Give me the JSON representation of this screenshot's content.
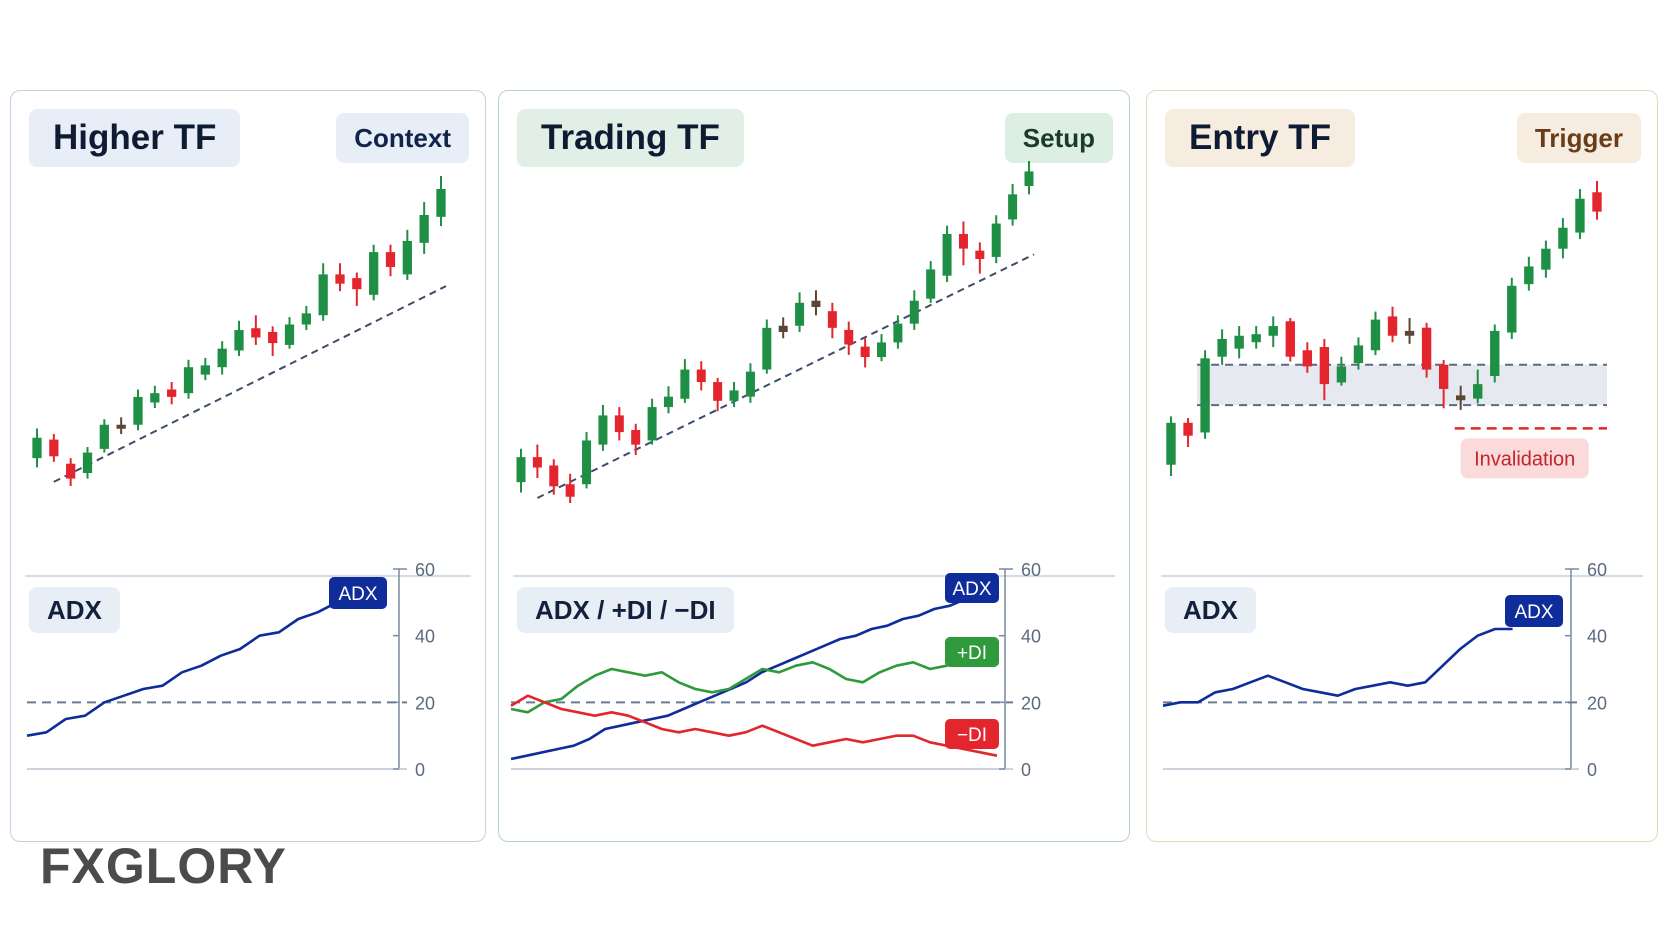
{
  "colors": {
    "bull": "#1e8f45",
    "bear": "#e3262d",
    "neutral": "#5b4636",
    "adx": "#0f2d9a",
    "plus_di": "#2e9a3c",
    "minus_di": "#e3262d",
    "trend_line": "#3d4c6b",
    "grid_ref": "#6a7b94",
    "axis": "#7b8aa0"
  },
  "logo": {
    "text": "FXGLORY"
  },
  "panels": [
    {
      "title": "Higher TF",
      "tag": "Context",
      "indicator_label": "ADX",
      "colors": {
        "title_bg": "#e7eef8",
        "tag_bg": "#e7eef8",
        "tag_fg": "#13244a"
      }
    },
    {
      "title": "Trading TF",
      "tag": "Setup",
      "indicator_label": "ADX / +DI / −DI",
      "colors": {
        "title_bg": "#e1efe6",
        "tag_bg": "#dcefe2",
        "tag_fg": "#1b3a27"
      }
    },
    {
      "title": "Entry TF",
      "tag": "Trigger",
      "indicator_label": "ADX",
      "invalidation_label": "Invalidation",
      "colors": {
        "title_bg": "#f6ece0",
        "tag_bg": "#f6ece0",
        "tag_fg": "#6a3d1a",
        "invalidation_bg": "#fadadb",
        "invalidation_fg": "#c0262a"
      }
    }
  ],
  "chart_data": [
    {
      "panel": "Higher TF",
      "type": "candlestick",
      "trend_line": true,
      "candles": [
        {
          "o": 4.1,
          "c": 5.2,
          "h": 5.7,
          "l": 3.6
        },
        {
          "o": 5.1,
          "c": 4.2,
          "h": 5.4,
          "l": 3.9
        },
        {
          "o": 3.8,
          "c": 3.0,
          "h": 4.1,
          "l": 2.6
        },
        {
          "o": 3.3,
          "c": 4.4,
          "h": 4.7,
          "l": 3.0
        },
        {
          "o": 4.6,
          "c": 5.9,
          "h": 6.2,
          "l": 4.4
        },
        {
          "o": 5.7,
          "c": 5.9,
          "h": 6.3,
          "l": 5.4
        },
        {
          "o": 5.9,
          "c": 7.4,
          "h": 7.8,
          "l": 5.6
        },
        {
          "o": 7.1,
          "c": 7.6,
          "h": 8.0,
          "l": 6.8
        },
        {
          "o": 7.8,
          "c": 7.4,
          "h": 8.2,
          "l": 7.0
        },
        {
          "o": 7.6,
          "c": 9.0,
          "h": 9.4,
          "l": 7.3
        },
        {
          "o": 8.6,
          "c": 9.1,
          "h": 9.5,
          "l": 8.3
        },
        {
          "o": 9.0,
          "c": 10.0,
          "h": 10.4,
          "l": 8.6
        },
        {
          "o": 9.9,
          "c": 11.0,
          "h": 11.5,
          "l": 9.6
        },
        {
          "o": 11.1,
          "c": 10.6,
          "h": 11.8,
          "l": 10.2
        },
        {
          "o": 10.9,
          "c": 10.3,
          "h": 11.2,
          "l": 9.6
        },
        {
          "o": 10.2,
          "c": 11.3,
          "h": 11.7,
          "l": 10.0
        },
        {
          "o": 11.3,
          "c": 11.9,
          "h": 12.3,
          "l": 11.0
        },
        {
          "o": 11.8,
          "c": 14.0,
          "h": 14.6,
          "l": 11.5
        },
        {
          "o": 14.0,
          "c": 13.5,
          "h": 14.6,
          "l": 13.1
        },
        {
          "o": 13.8,
          "c": 13.2,
          "h": 14.1,
          "l": 12.3
        },
        {
          "o": 12.9,
          "c": 15.2,
          "h": 15.6,
          "l": 12.6
        },
        {
          "o": 15.2,
          "c": 14.4,
          "h": 15.6,
          "l": 13.9
        },
        {
          "o": 14.0,
          "c": 15.8,
          "h": 16.4,
          "l": 13.7
        },
        {
          "o": 15.7,
          "c": 17.2,
          "h": 17.9,
          "l": 15.1
        },
        {
          "o": 17.1,
          "c": 18.6,
          "h": 19.3,
          "l": 16.6
        }
      ],
      "indicator": {
        "type": "line",
        "ylim": [
          0,
          60
        ],
        "y_ticks": [
          "0",
          "20",
          "40",
          "60"
        ],
        "reference": 20,
        "series": [
          {
            "name": "ADX",
            "color_key": "adx",
            "values": [
              10,
              11,
              15,
              16,
              20,
              22,
              24,
              25,
              29,
              31,
              34,
              36,
              40,
              41,
              45,
              47,
              50
            ]
          }
        ]
      }
    },
    {
      "panel": "Trading TF",
      "type": "candlestick",
      "trend_line": true,
      "candles": [
        {
          "o": 3.2,
          "c": 4.4,
          "h": 4.8,
          "l": 2.7
        },
        {
          "o": 4.4,
          "c": 3.9,
          "h": 5.0,
          "l": 3.4
        },
        {
          "o": 4.0,
          "c": 3.0,
          "h": 4.3,
          "l": 2.6
        },
        {
          "o": 3.1,
          "c": 2.5,
          "h": 3.6,
          "l": 2.2
        },
        {
          "o": 3.1,
          "c": 5.2,
          "h": 5.6,
          "l": 2.9
        },
        {
          "o": 5.0,
          "c": 6.4,
          "h": 6.9,
          "l": 4.7
        },
        {
          "o": 6.4,
          "c": 5.6,
          "h": 6.8,
          "l": 5.2
        },
        {
          "o": 5.7,
          "c": 5.0,
          "h": 6.0,
          "l": 4.5
        },
        {
          "o": 5.2,
          "c": 6.8,
          "h": 7.2,
          "l": 5.0
        },
        {
          "o": 6.8,
          "c": 7.3,
          "h": 7.8,
          "l": 6.5
        },
        {
          "o": 7.2,
          "c": 8.6,
          "h": 9.1,
          "l": 7.0
        },
        {
          "o": 8.6,
          "c": 8.0,
          "h": 9.0,
          "l": 7.6
        },
        {
          "o": 8.0,
          "c": 7.1,
          "h": 8.2,
          "l": 6.6
        },
        {
          "o": 7.1,
          "c": 7.6,
          "h": 8.0,
          "l": 6.8
        },
        {
          "o": 7.3,
          "c": 8.5,
          "h": 8.9,
          "l": 7.0
        },
        {
          "o": 8.6,
          "c": 10.6,
          "h": 11.0,
          "l": 8.4
        },
        {
          "o": 10.4,
          "c": 10.7,
          "h": 11.1,
          "l": 10.1
        },
        {
          "o": 10.7,
          "c": 11.8,
          "h": 12.3,
          "l": 10.4
        },
        {
          "o": 11.9,
          "c": 11.6,
          "h": 12.4,
          "l": 11.2
        },
        {
          "o": 11.4,
          "c": 10.6,
          "h": 11.8,
          "l": 10.1
        },
        {
          "o": 10.5,
          "c": 9.8,
          "h": 10.9,
          "l": 9.3
        },
        {
          "o": 9.7,
          "c": 9.2,
          "h": 10.1,
          "l": 8.7
        },
        {
          "o": 9.2,
          "c": 9.9,
          "h": 10.3,
          "l": 9.0
        },
        {
          "o": 9.9,
          "c": 10.8,
          "h": 11.2,
          "l": 9.6
        },
        {
          "o": 10.8,
          "c": 11.9,
          "h": 12.4,
          "l": 10.5
        },
        {
          "o": 12.0,
          "c": 13.4,
          "h": 13.8,
          "l": 11.8
        },
        {
          "o": 13.1,
          "c": 15.1,
          "h": 15.5,
          "l": 12.8
        },
        {
          "o": 15.1,
          "c": 14.4,
          "h": 15.7,
          "l": 13.6
        },
        {
          "o": 14.3,
          "c": 13.9,
          "h": 14.7,
          "l": 13.2
        },
        {
          "o": 14.0,
          "c": 15.6,
          "h": 16.0,
          "l": 13.7
        },
        {
          "o": 15.8,
          "c": 17.0,
          "h": 17.5,
          "l": 15.5
        },
        {
          "o": 17.4,
          "c": 18.1,
          "h": 18.6,
          "l": 17.0
        }
      ],
      "indicator": {
        "type": "line",
        "ylim": [
          0,
          60
        ],
        "y_ticks": [
          "0",
          "20",
          "40",
          "60"
        ],
        "reference": 20,
        "series": [
          {
            "name": "ADX",
            "color_key": "adx",
            "values": [
              3,
              4,
              5,
              6,
              7,
              9,
              12,
              13,
              14,
              15,
              16,
              18,
              20,
              22,
              24,
              26,
              29,
              31,
              33,
              35,
              37,
              39,
              40,
              42,
              43,
              45,
              46,
              48,
              49,
              51,
              52,
              52
            ]
          },
          {
            "name": "+DI",
            "color_key": "plus_di",
            "values": [
              18,
              17,
              20,
              21,
              25,
              28,
              30,
              29,
              28,
              29,
              26,
              24,
              23,
              24,
              27,
              30,
              29,
              31,
              32,
              30,
              27,
              26,
              29,
              31,
              32,
              30,
              31,
              33,
              33,
              32
            ]
          },
          {
            "name": "−DI",
            "color_key": "minus_di",
            "values": [
              19,
              22,
              20,
              18,
              17,
              16,
              17,
              16,
              14,
              12,
              11,
              12,
              11,
              10,
              11,
              13,
              11,
              9,
              7,
              8,
              9,
              8,
              9,
              10,
              10,
              8,
              7,
              6,
              5,
              4
            ]
          }
        ]
      }
    },
    {
      "panel": "Entry TF",
      "type": "candlestick",
      "trend_line": false,
      "support_zone": [
        12.9,
        15.4
      ],
      "invalidation_level": 12.2,
      "candles": [
        {
          "o": 9.2,
          "c": 11.8,
          "h": 12.2,
          "l": 8.5
        },
        {
          "o": 11.8,
          "c": 11.0,
          "h": 12.1,
          "l": 10.3
        },
        {
          "o": 11.2,
          "c": 15.8,
          "h": 16.3,
          "l": 10.8
        },
        {
          "o": 15.9,
          "c": 17.0,
          "h": 17.6,
          "l": 15.4
        },
        {
          "o": 16.4,
          "c": 17.2,
          "h": 17.8,
          "l": 15.8
        },
        {
          "o": 16.8,
          "c": 17.3,
          "h": 17.8,
          "l": 16.4
        },
        {
          "o": 17.2,
          "c": 17.8,
          "h": 18.4,
          "l": 16.5
        },
        {
          "o": 18.1,
          "c": 15.9,
          "h": 18.3,
          "l": 15.6
        },
        {
          "o": 16.3,
          "c": 15.3,
          "h": 16.8,
          "l": 14.9
        },
        {
          "o": 16.5,
          "c": 14.2,
          "h": 17.0,
          "l": 13.2
        },
        {
          "o": 14.3,
          "c": 15.3,
          "h": 15.9,
          "l": 14.1
        },
        {
          "o": 15.5,
          "c": 16.6,
          "h": 17.1,
          "l": 15.1
        },
        {
          "o": 16.3,
          "c": 18.2,
          "h": 18.7,
          "l": 16.0
        },
        {
          "o": 18.4,
          "c": 17.2,
          "h": 19.0,
          "l": 16.8
        },
        {
          "o": 17.5,
          "c": 17.2,
          "h": 18.3,
          "l": 16.7
        },
        {
          "o": 17.7,
          "c": 15.1,
          "h": 18.0,
          "l": 14.6
        },
        {
          "o": 15.4,
          "c": 13.9,
          "h": 15.7,
          "l": 12.7
        },
        {
          "o": 13.5,
          "c": 13.2,
          "h": 14.1,
          "l": 12.6
        },
        {
          "o": 13.3,
          "c": 14.2,
          "h": 15.1,
          "l": 13.0
        },
        {
          "o": 14.7,
          "c": 17.5,
          "h": 17.9,
          "l": 14.3
        },
        {
          "o": 17.4,
          "c": 20.3,
          "h": 20.8,
          "l": 17.0
        },
        {
          "o": 20.4,
          "c": 21.5,
          "h": 22.1,
          "l": 20.0
        },
        {
          "o": 21.3,
          "c": 22.6,
          "h": 23.1,
          "l": 20.8
        },
        {
          "o": 22.6,
          "c": 23.9,
          "h": 24.5,
          "l": 22.0
        },
        {
          "o": 23.6,
          "c": 25.7,
          "h": 26.3,
          "l": 23.2
        },
        {
          "o": 26.1,
          "c": 24.9,
          "h": 26.8,
          "l": 24.4
        }
      ],
      "indicator": {
        "type": "line",
        "ylim": [
          0,
          60
        ],
        "y_ticks": [
          "0",
          "20",
          "40",
          "60"
        ],
        "reference": 20,
        "series": [
          {
            "name": "ADX",
            "color_key": "adx",
            "values": [
              19,
              20,
              20,
              23,
              24,
              26,
              28,
              26,
              24,
              23,
              22,
              24,
              25,
              26,
              25,
              26,
              31,
              36,
              40,
              42,
              42
            ]
          }
        ]
      }
    }
  ]
}
